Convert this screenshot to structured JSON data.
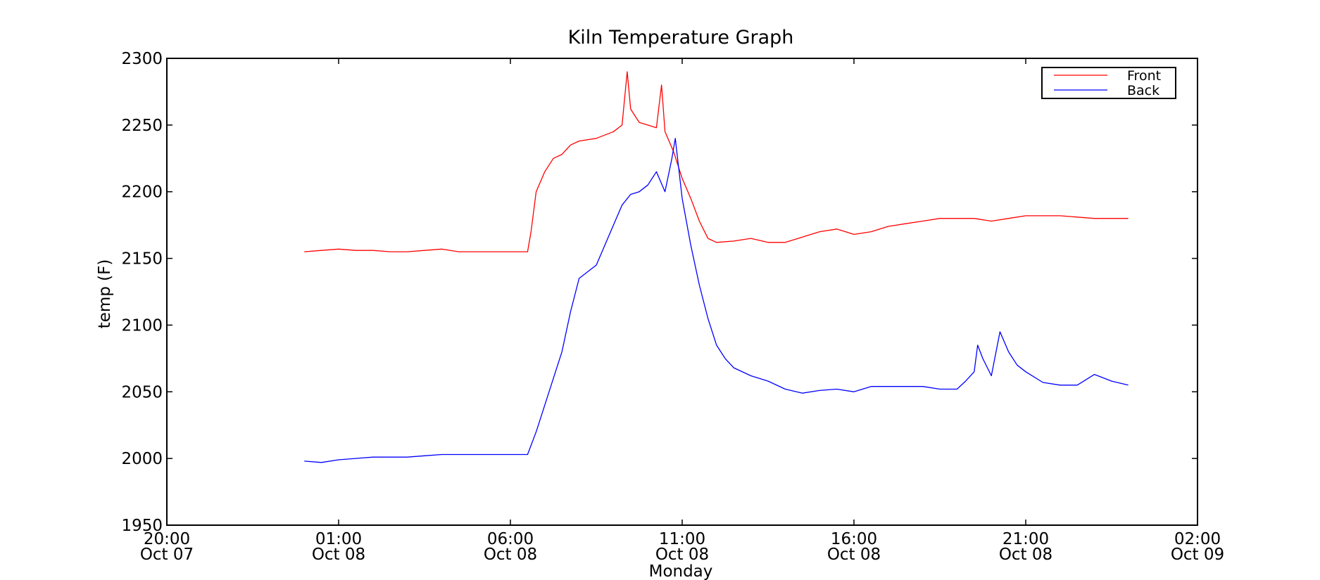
{
  "chart_data": {
    "type": "line",
    "title": "Kiln Temperature Graph",
    "xlabel": "Monday",
    "ylabel": "temp (F)",
    "xlim": [
      "2012-10-07 20:00",
      "2012-10-09 02:00"
    ],
    "ylim": [
      1950,
      2300
    ],
    "y_ticks": [
      1950,
      2000,
      2050,
      2100,
      2150,
      2200,
      2250,
      2300
    ],
    "x_ticks": [
      {
        "time": "2012-10-07 20:00",
        "label": [
          "20:00",
          "Oct 07"
        ]
      },
      {
        "time": "2012-10-08 01:00",
        "label": [
          "01:00",
          "Oct 08"
        ]
      },
      {
        "time": "2012-10-08 06:00",
        "label": [
          "06:00",
          "Oct 08"
        ]
      },
      {
        "time": "2012-10-08 11:00",
        "label": [
          "11:00",
          "Oct 08"
        ]
      },
      {
        "time": "2012-10-08 16:00",
        "label": [
          "16:00",
          "Oct 08"
        ]
      },
      {
        "time": "2012-10-08 21:00",
        "label": [
          "21:00",
          "Oct 08"
        ]
      },
      {
        "time": "2012-10-09 02:00",
        "label": [
          "02:00",
          "Oct 09"
        ]
      }
    ],
    "grid": false,
    "legend": {
      "position": "top-right"
    },
    "series": [
      {
        "name": "Front",
        "color": "#ff0000",
        "points": [
          [
            "2012-10-08 00:00",
            2155
          ],
          [
            "2012-10-08 00:30",
            2156
          ],
          [
            "2012-10-08 01:00",
            2157
          ],
          [
            "2012-10-08 01:30",
            2156
          ],
          [
            "2012-10-08 02:00",
            2156
          ],
          [
            "2012-10-08 02:30",
            2155
          ],
          [
            "2012-10-08 03:00",
            2155
          ],
          [
            "2012-10-08 03:30",
            2156
          ],
          [
            "2012-10-08 04:00",
            2157
          ],
          [
            "2012-10-08 04:30",
            2155
          ],
          [
            "2012-10-08 05:00",
            2155
          ],
          [
            "2012-10-08 05:30",
            2155
          ],
          [
            "2012-10-08 06:00",
            2155
          ],
          [
            "2012-10-08 06:30",
            2155
          ],
          [
            "2012-10-08 06:36",
            2170
          ],
          [
            "2012-10-08 06:45",
            2200
          ],
          [
            "2012-10-08 07:00",
            2215
          ],
          [
            "2012-10-08 07:15",
            2225
          ],
          [
            "2012-10-08 07:30",
            2228
          ],
          [
            "2012-10-08 07:45",
            2235
          ],
          [
            "2012-10-08 08:00",
            2238
          ],
          [
            "2012-10-08 08:30",
            2240
          ],
          [
            "2012-10-08 09:00",
            2245
          ],
          [
            "2012-10-08 09:15",
            2250
          ],
          [
            "2012-10-08 09:24",
            2290
          ],
          [
            "2012-10-08 09:30",
            2262
          ],
          [
            "2012-10-08 09:45",
            2252
          ],
          [
            "2012-10-08 10:00",
            2250
          ],
          [
            "2012-10-08 10:15",
            2248
          ],
          [
            "2012-10-08 10:24",
            2280
          ],
          [
            "2012-10-08 10:30",
            2245
          ],
          [
            "2012-10-08 10:45",
            2230
          ],
          [
            "2012-10-08 11:00",
            2210
          ],
          [
            "2012-10-08 11:15",
            2195
          ],
          [
            "2012-10-08 11:30",
            2178
          ],
          [
            "2012-10-08 11:45",
            2165
          ],
          [
            "2012-10-08 12:00",
            2162
          ],
          [
            "2012-10-08 12:30",
            2163
          ],
          [
            "2012-10-08 13:00",
            2165
          ],
          [
            "2012-10-08 13:30",
            2162
          ],
          [
            "2012-10-08 14:00",
            2162
          ],
          [
            "2012-10-08 14:30",
            2166
          ],
          [
            "2012-10-08 15:00",
            2170
          ],
          [
            "2012-10-08 15:30",
            2172
          ],
          [
            "2012-10-08 16:00",
            2168
          ],
          [
            "2012-10-08 16:30",
            2170
          ],
          [
            "2012-10-08 17:00",
            2174
          ],
          [
            "2012-10-08 17:30",
            2176
          ],
          [
            "2012-10-08 18:00",
            2178
          ],
          [
            "2012-10-08 18:30",
            2180
          ],
          [
            "2012-10-08 19:00",
            2180
          ],
          [
            "2012-10-08 19:30",
            2180
          ],
          [
            "2012-10-08 20:00",
            2178
          ],
          [
            "2012-10-08 20:30",
            2180
          ],
          [
            "2012-10-08 21:00",
            2182
          ],
          [
            "2012-10-08 21:30",
            2182
          ],
          [
            "2012-10-08 22:00",
            2182
          ],
          [
            "2012-10-08 22:30",
            2181
          ],
          [
            "2012-10-08 23:00",
            2180
          ],
          [
            "2012-10-08 23:30",
            2180
          ],
          [
            "2012-10-08 23:59",
            2180
          ]
        ]
      },
      {
        "name": "Back",
        "color": "#0000ff",
        "points": [
          [
            "2012-10-08 00:00",
            1998
          ],
          [
            "2012-10-08 00:30",
            1997
          ],
          [
            "2012-10-08 01:00",
            1999
          ],
          [
            "2012-10-08 01:30",
            2000
          ],
          [
            "2012-10-08 02:00",
            2001
          ],
          [
            "2012-10-08 02:30",
            2001
          ],
          [
            "2012-10-08 03:00",
            2001
          ],
          [
            "2012-10-08 03:30",
            2002
          ],
          [
            "2012-10-08 04:00",
            2003
          ],
          [
            "2012-10-08 04:30",
            2003
          ],
          [
            "2012-10-08 05:00",
            2003
          ],
          [
            "2012-10-08 05:30",
            2003
          ],
          [
            "2012-10-08 06:00",
            2003
          ],
          [
            "2012-10-08 06:30",
            2003
          ],
          [
            "2012-10-08 06:45",
            2020
          ],
          [
            "2012-10-08 07:00",
            2040
          ],
          [
            "2012-10-08 07:15",
            2060
          ],
          [
            "2012-10-08 07:30",
            2080
          ],
          [
            "2012-10-08 07:45",
            2110
          ],
          [
            "2012-10-08 08:00",
            2135
          ],
          [
            "2012-10-08 08:15",
            2140
          ],
          [
            "2012-10-08 08:30",
            2145
          ],
          [
            "2012-10-08 08:45",
            2160
          ],
          [
            "2012-10-08 09:00",
            2175
          ],
          [
            "2012-10-08 09:15",
            2190
          ],
          [
            "2012-10-08 09:30",
            2198
          ],
          [
            "2012-10-08 09:45",
            2200
          ],
          [
            "2012-10-08 10:00",
            2205
          ],
          [
            "2012-10-08 10:15",
            2215
          ],
          [
            "2012-10-08 10:30",
            2200
          ],
          [
            "2012-10-08 10:42",
            2225
          ],
          [
            "2012-10-08 10:48",
            2240
          ],
          [
            "2012-10-08 11:00",
            2195
          ],
          [
            "2012-10-08 11:15",
            2160
          ],
          [
            "2012-10-08 11:30",
            2130
          ],
          [
            "2012-10-08 11:45",
            2105
          ],
          [
            "2012-10-08 12:00",
            2085
          ],
          [
            "2012-10-08 12:15",
            2075
          ],
          [
            "2012-10-08 12:30",
            2068
          ],
          [
            "2012-10-08 13:00",
            2062
          ],
          [
            "2012-10-08 13:30",
            2058
          ],
          [
            "2012-10-08 14:00",
            2052
          ],
          [
            "2012-10-08 14:30",
            2049
          ],
          [
            "2012-10-08 15:00",
            2051
          ],
          [
            "2012-10-08 15:30",
            2052
          ],
          [
            "2012-10-08 16:00",
            2050
          ],
          [
            "2012-10-08 16:30",
            2054
          ],
          [
            "2012-10-08 17:00",
            2054
          ],
          [
            "2012-10-08 17:30",
            2054
          ],
          [
            "2012-10-08 18:00",
            2054
          ],
          [
            "2012-10-08 18:30",
            2052
          ],
          [
            "2012-10-08 19:00",
            2052
          ],
          [
            "2012-10-08 19:15",
            2058
          ],
          [
            "2012-10-08 19:30",
            2065
          ],
          [
            "2012-10-08 19:36",
            2085
          ],
          [
            "2012-10-08 19:45",
            2075
          ],
          [
            "2012-10-08 20:00",
            2062
          ],
          [
            "2012-10-08 20:15",
            2095
          ],
          [
            "2012-10-08 20:30",
            2080
          ],
          [
            "2012-10-08 20:45",
            2070
          ],
          [
            "2012-10-08 21:00",
            2065
          ],
          [
            "2012-10-08 21:30",
            2057
          ],
          [
            "2012-10-08 22:00",
            2055
          ],
          [
            "2012-10-08 22:30",
            2055
          ],
          [
            "2012-10-08 23:00",
            2063
          ],
          [
            "2012-10-08 23:30",
            2058
          ],
          [
            "2012-10-08 23:59",
            2055
          ]
        ]
      }
    ]
  }
}
